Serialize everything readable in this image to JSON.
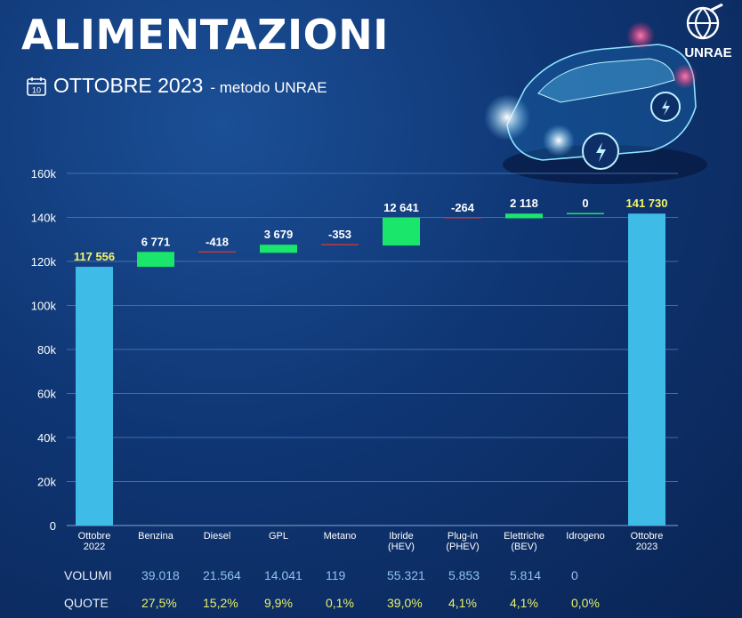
{
  "header": {
    "title": "ALIMENTAZIONI",
    "calendar_day": "10",
    "subtitle_main": "OTTOBRE 2023",
    "subtitle_method": "- metodo UNRAE",
    "logo_text": "UNRAE"
  },
  "colors": {
    "background": "#0f3674",
    "total_bar": "#3ebbe6",
    "positive_bar": "#19e66b",
    "negative_bar": "#c03a3a",
    "total_label": "#f3f56a",
    "volumi": "#8fc3ea",
    "quote": "#e6ef6a"
  },
  "chart_data": {
    "type": "waterfall",
    "ylim": [
      0,
      160000
    ],
    "yticks": [
      0,
      20000,
      40000,
      60000,
      80000,
      100000,
      120000,
      140000,
      160000
    ],
    "ytick_labels": [
      "0",
      "20k",
      "40k",
      "60k",
      "80k",
      "100k",
      "120k",
      "140k",
      "160k"
    ],
    "grid": true,
    "categories": [
      [
        "Ottobre",
        "2022"
      ],
      [
        "Benzina"
      ],
      [
        "Diesel"
      ],
      [
        "GPL"
      ],
      [
        "Metano"
      ],
      [
        "Ibride",
        "(HEV)"
      ],
      [
        "Plug-in",
        "(PHEV)"
      ],
      [
        "Elettriche",
        "(BEV)"
      ],
      [
        "Idrogeno"
      ],
      [
        "Ottobre",
        "2023"
      ]
    ],
    "kinds": [
      "total",
      "delta",
      "delta",
      "delta",
      "delta",
      "delta",
      "delta",
      "delta",
      "delta",
      "total"
    ],
    "values": [
      117556,
      6771,
      -418,
      3679,
      -353,
      12641,
      -264,
      2118,
      0,
      141730
    ],
    "value_labels": [
      "117 556",
      "6 771",
      "-418",
      "3 679",
      "-353",
      "12 641",
      "-264",
      "2 118",
      "0",
      "141 730"
    ]
  },
  "table": {
    "volumi_label": "VOLUMI",
    "quote_label": "QUOTE",
    "volumi": [
      "39.018",
      "21.564",
      "14.041",
      "119",
      "55.321",
      "5.853",
      "5.814",
      "0"
    ],
    "quote": [
      "27,5%",
      "15,2%",
      "9,9%",
      "0,1%",
      "39,0%",
      "4,1%",
      "4,1%",
      "0,0%"
    ]
  }
}
